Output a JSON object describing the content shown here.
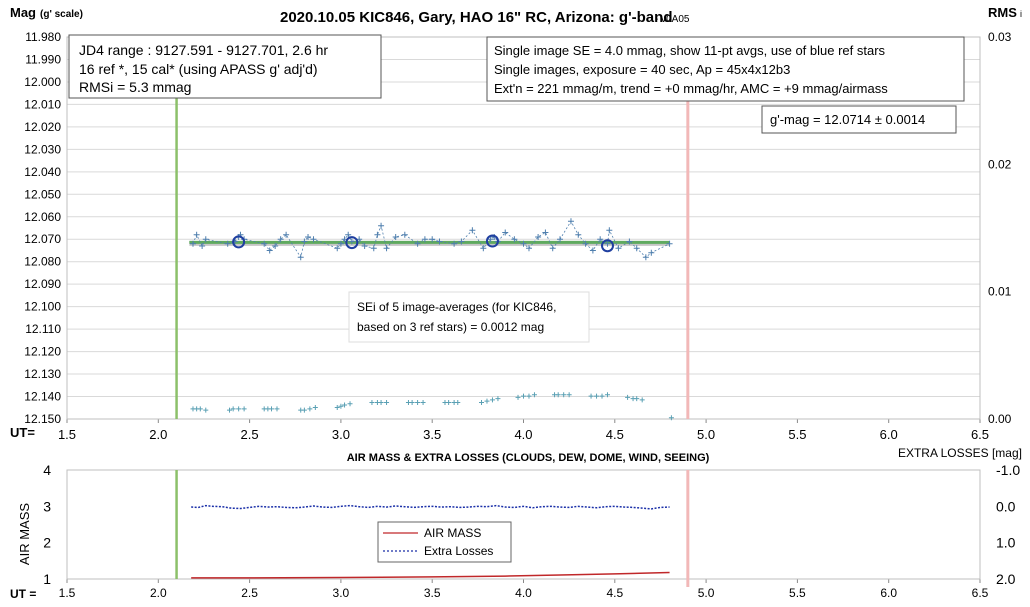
{
  "chart_data": [
    {
      "type": "scatter",
      "title": "2020.10.05 KIC846, Gary, HAO 16\" RC, Arizona: g'-band",
      "version": "- v0A05",
      "ylabel": "Mag",
      "ylabel_sub": "(g' scale)",
      "y2label": "RMS",
      "y2label_sub": "i",
      "xlabel": "UT=",
      "xlim": [
        1.5,
        6.5
      ],
      "ylim": [
        11.98,
        12.15
      ],
      "y2lim": [
        0.0,
        0.03
      ],
      "x_ticks": [
        "1.5",
        "2.0",
        "2.5",
        "3.0",
        "3.5",
        "4.0",
        "4.5",
        "5.0",
        "5.5",
        "6.0",
        "6.5"
      ],
      "y_ticks": [
        "11.980",
        "11.990",
        "12.000",
        "12.010",
        "12.020",
        "12.030",
        "12.040",
        "12.050",
        "12.060",
        "12.070",
        "12.080",
        "12.090",
        "12.100",
        "12.110",
        "12.120",
        "12.130",
        "12.140",
        "12.150"
      ],
      "y2_ticks": [
        "0.00",
        "0.01",
        "0.02",
        "0.03"
      ],
      "grid": true,
      "colors": {
        "points": "#4f7fae",
        "avg": "#1f3fa0",
        "fit": "#5faa5f",
        "fit_under": "#b8b8b8",
        "rms": "#5aa0b4",
        "start_line": "#8cc06a",
        "end_line": "#f2b8b8"
      },
      "start_ut": 2.1,
      "end_ut": 4.9,
      "fit": {
        "x": [
          2.1,
          4.9
        ],
        "y": [
          12.0714,
          12.0714
        ]
      },
      "series": [
        {
          "x": [
            2.19,
            2.21,
            2.24,
            2.26,
            2.38,
            2.42,
            2.44,
            2.45,
            2.47,
            2.58,
            2.61,
            2.64,
            2.67,
            2.7,
            2.78,
            2.8,
            2.82,
            2.85,
            2.98,
            3.0,
            3.02,
            3.04,
            3.06,
            3.1,
            3.13,
            3.18,
            3.2,
            3.22,
            3.25,
            3.3,
            3.35,
            3.42,
            3.46,
            3.5,
            3.54,
            3.62,
            3.66,
            3.72,
            3.78,
            3.82,
            3.84,
            3.86,
            3.9,
            3.95,
            4.0,
            4.03,
            4.08,
            4.12,
            4.16,
            4.2,
            4.26,
            4.3,
            4.34,
            4.38,
            4.42,
            4.46,
            4.47,
            4.52,
            4.58,
            4.62,
            4.67,
            4.7,
            4.8
          ],
          "y": [
            12.072,
            12.068,
            12.073,
            12.07,
            12.072,
            12.071,
            12.069,
            12.068,
            12.07,
            12.072,
            12.075,
            12.073,
            12.07,
            12.068,
            12.078,
            12.071,
            12.069,
            12.07,
            12.074,
            12.072,
            12.07,
            12.068,
            12.071,
            12.07,
            12.073,
            12.074,
            12.068,
            12.064,
            12.074,
            12.069,
            12.068,
            12.072,
            12.07,
            12.07,
            12.071,
            12.072,
            12.071,
            12.066,
            12.074,
            12.07,
            12.069,
            12.071,
            12.067,
            12.07,
            12.072,
            12.074,
            12.069,
            12.067,
            12.074,
            12.07,
            12.062,
            12.068,
            12.072,
            12.075,
            12.07,
            12.072,
            12.066,
            12.074,
            12.071,
            12.074,
            12.078,
            12.076,
            12.072
          ]
        },
        {
          "x": [
            2.44,
            3.06,
            3.83,
            4.46
          ],
          "y": [
            12.0712,
            12.0715,
            12.0708,
            12.0729
          ]
        },
        {
          "axis": "right",
          "x": [
            2.19,
            2.21,
            2.23,
            2.26,
            2.39,
            2.41,
            2.44,
            2.47,
            2.58,
            2.6,
            2.62,
            2.65,
            2.78,
            2.8,
            2.83,
            2.86,
            2.98,
            3.0,
            3.02,
            3.05,
            3.17,
            3.2,
            3.22,
            3.25,
            3.37,
            3.39,
            3.42,
            3.45,
            3.57,
            3.59,
            3.62,
            3.64,
            3.77,
            3.8,
            3.83,
            3.86,
            3.97,
            4.0,
            4.03,
            4.06,
            4.17,
            4.19,
            4.22,
            4.25,
            4.37,
            4.4,
            4.43,
            4.46,
            4.57,
            4.6,
            4.62,
            4.65,
            4.81
          ],
          "y": [
            0.0008,
            0.0008,
            0.0008,
            0.0007,
            0.0007,
            0.0008,
            0.0008,
            0.0008,
            0.0008,
            0.0008,
            0.0008,
            0.0008,
            0.0007,
            0.0007,
            0.0008,
            0.0009,
            0.0009,
            0.001,
            0.0011,
            0.0012,
            0.0013,
            0.0013,
            0.0013,
            0.0013,
            0.0013,
            0.0013,
            0.0013,
            0.0013,
            0.0013,
            0.0013,
            0.0013,
            0.0013,
            0.0013,
            0.0014,
            0.0015,
            0.0016,
            0.0017,
            0.0018,
            0.0018,
            0.0019,
            0.0019,
            0.0019,
            0.0019,
            0.0019,
            0.0018,
            0.0018,
            0.0018,
            0.0019,
            0.0017,
            0.0016,
            0.0016,
            0.0015,
            0.0001
          ]
        }
      ],
      "annotations": {
        "box1": [
          "JD4 range : 9127.591 - 9127.701,  2.6  hr",
          "16 ref *, 15 cal* (using APASS g' adj'd)",
          "RMSi = 5.3 mmag"
        ],
        "box2": [
          "Single image SE = 4.0 mmag, show  11-pt avgs, use of blue ref stars",
          "Single images, exposure = 40 sec, Ap = 45x4x12b3",
          "Ext'n = 221 mmag/m, trend =  +0 mmag/hr, AMC = +9 mmag/airmass"
        ],
        "box3": [
          "g'-mag = 12.0714 ± 0.0014"
        ],
        "box4": [
          "SEi of 5 image-averages (for KIC846,",
          "based on 3 ref stars) = 0.0012 mag"
        ]
      }
    },
    {
      "type": "line",
      "title": "AIR MASS & EXTRA LOSSES (CLOUDS, DEW, DOME, WIND, SEEING)",
      "ylabel": "AIR MASS",
      "y2label": "EXTRA LOSSES [mag]",
      "xlabel": "UT =",
      "xlim": [
        1.5,
        6.5
      ],
      "ylim": [
        1,
        4
      ],
      "y2lim": [
        2.0,
        -1.0
      ],
      "x_ticks": [
        "1.5",
        "2.0",
        "2.5",
        "3.0",
        "3.5",
        "4.0",
        "4.5",
        "5.0",
        "5.5",
        "6.0",
        "6.5"
      ],
      "y_ticks": [
        "1",
        "2",
        "3",
        "4"
      ],
      "y2_ticks": [
        "-1.0",
        "0.0",
        "1.0",
        "2.0"
      ],
      "colors": {
        "airmass": "#c0282a",
        "losses": "#1a2fa8",
        "start_line": "#8cc06a",
        "end_line": "#f2b8b8"
      },
      "start_ut": 2.1,
      "end_ut": 4.9,
      "legend": [
        "AIR MASS",
        "Extra Losses"
      ],
      "legend_position": "center",
      "series": [
        {
          "name": "AIR MASS",
          "x": [
            2.18,
            2.5,
            3.0,
            3.5,
            3.9,
            4.2,
            4.5,
            4.8
          ],
          "y": [
            1.03,
            1.03,
            1.04,
            1.06,
            1.08,
            1.11,
            1.14,
            1.18
          ]
        },
        {
          "name": "Extra Losses",
          "axis": "right",
          "x": [
            2.18,
            2.22,
            2.26,
            2.3,
            2.35,
            2.4,
            2.45,
            2.5,
            2.55,
            2.6,
            2.65,
            2.7,
            2.75,
            2.8,
            2.85,
            2.9,
            2.95,
            3.0,
            3.05,
            3.1,
            3.15,
            3.2,
            3.25,
            3.3,
            3.35,
            3.4,
            3.45,
            3.5,
            3.55,
            3.6,
            3.65,
            3.7,
            3.75,
            3.8,
            3.85,
            3.9,
            3.95,
            4.0,
            4.05,
            4.1,
            4.15,
            4.2,
            4.25,
            4.3,
            4.35,
            4.4,
            4.45,
            4.5,
            4.55,
            4.6,
            4.65,
            4.7,
            4.75,
            4.8
          ],
          "y": [
            0.02,
            0.03,
            -0.02,
            0.0,
            0.01,
            0.05,
            0.06,
            0.03,
            0.0,
            0.02,
            0.01,
            0.03,
            0.04,
            0.02,
            -0.01,
            0.02,
            0.03,
            0.0,
            -0.02,
            0.01,
            0.03,
            0.0,
            0.02,
            -0.01,
            0.01,
            0.03,
            0.01,
            0.0,
            0.02,
            0.01,
            0.03,
            0.02,
            0.0,
            0.01,
            -0.02,
            0.02,
            0.03,
            0.0,
            0.04,
            0.01,
            0.0,
            0.02,
            0.03,
            0.0,
            0.02,
            0.04,
            0.01,
            0.0,
            0.02,
            0.03,
            0.05,
            0.07,
            0.03,
            0.02
          ]
        }
      ]
    }
  ]
}
